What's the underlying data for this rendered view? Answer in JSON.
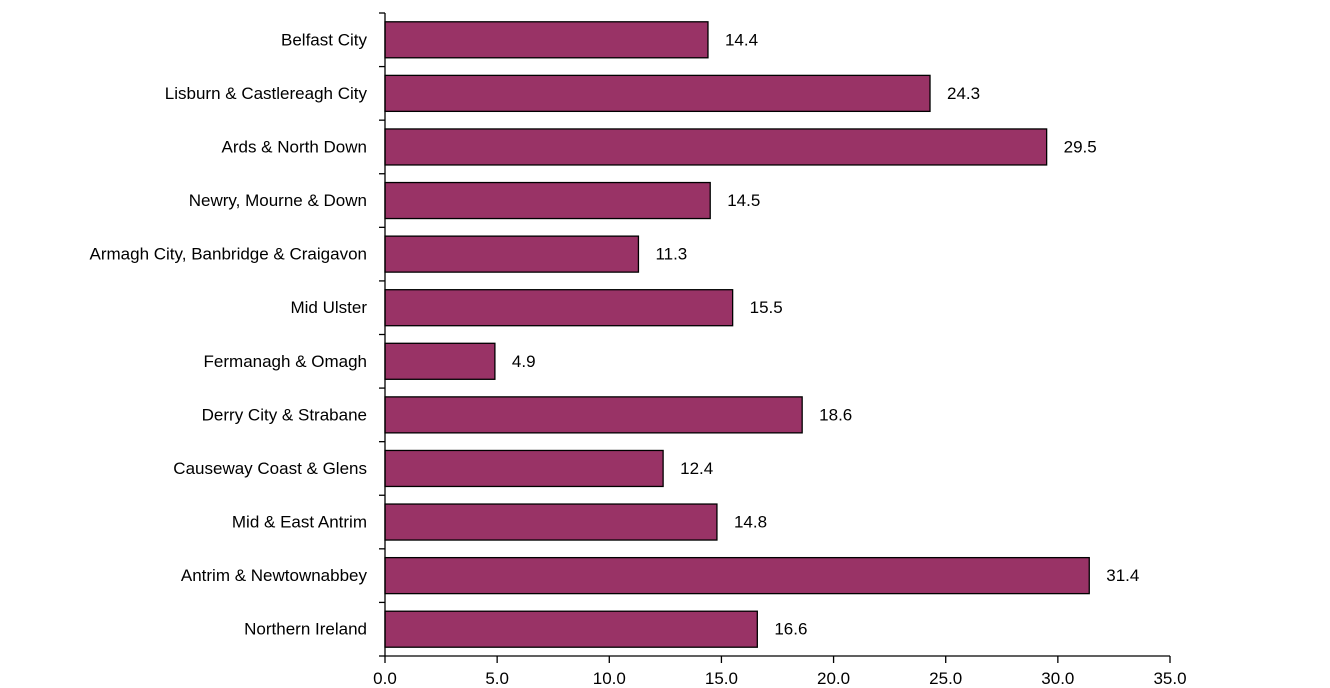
{
  "chart_data": {
    "type": "bar",
    "orientation": "horizontal",
    "title": "",
    "xlabel": "",
    "ylabel": "",
    "categories": [
      "Belfast City",
      "Lisburn & Castlereagh City",
      "Ards & North Down",
      "Newry, Mourne & Down",
      "Armagh City, Banbridge & Craigavon",
      "Mid Ulster",
      "Fermanagh & Omagh",
      "Derry City & Strabane",
      "Causeway Coast & Glens",
      "Mid & East Antrim",
      "Antrim & Newtownabbey",
      "Northern Ireland"
    ],
    "values": [
      14.4,
      24.3,
      29.5,
      14.5,
      11.3,
      15.5,
      4.9,
      18.6,
      12.4,
      14.8,
      31.4,
      16.6
    ],
    "value_labels": [
      "14.4",
      "24.3",
      "29.5",
      "14.5",
      "11.3",
      "15.5",
      "4.9",
      "18.6",
      "12.4",
      "14.8",
      "31.4",
      "16.6"
    ],
    "xlim": [
      0,
      35
    ],
    "xticks": [
      0,
      5,
      10,
      15,
      20,
      25,
      30,
      35
    ],
    "xtick_labels": [
      "0.0",
      "5.0",
      "10.0",
      "15.0",
      "20.0",
      "25.0",
      "30.0",
      "35.0"
    ],
    "grid": false,
    "legend": "none",
    "colors": {
      "bar_fill": "#993366",
      "bar_stroke": "#000000",
      "axis": "#000000"
    }
  }
}
